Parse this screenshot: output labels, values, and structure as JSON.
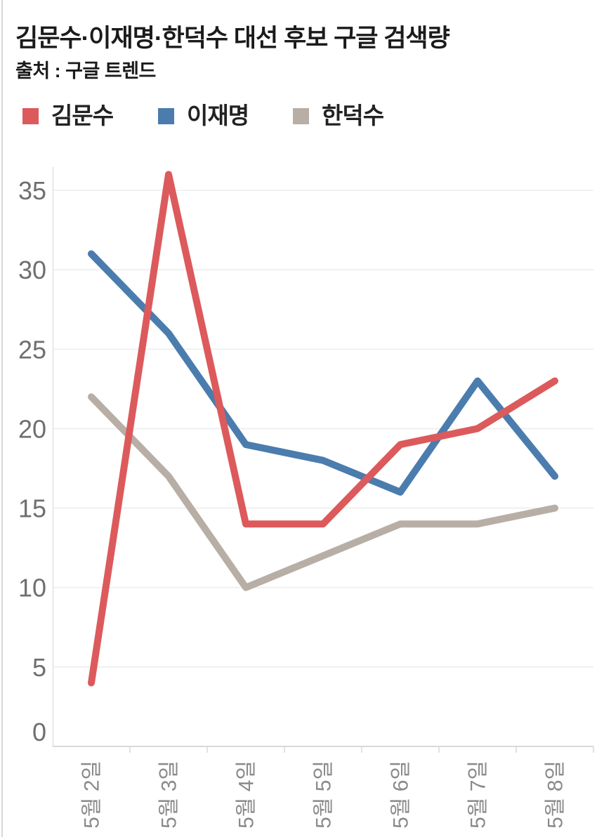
{
  "header": {
    "title": "김문수·이재명·한덕수 대선 후보 구글 검색량",
    "subtitle": "출처 : 구글 트렌드"
  },
  "legend": [
    {
      "label": "김문수",
      "color": "#dc5a5c"
    },
    {
      "label": "이재명",
      "color": "#4b7cae"
    },
    {
      "label": "한덕수",
      "color": "#b7aea5"
    }
  ],
  "chart_data": {
    "type": "line",
    "title": "김문수·이재명·한덕수 대선 후보 구글 검색량",
    "source": "출처 : 구글 트렌드",
    "categories": [
      "5월 2일",
      "5월 3일",
      "5월 4일",
      "5월 5일",
      "5월 6일",
      "5월 7일",
      "5월 8일"
    ],
    "series": [
      {
        "name": "김문수",
        "color": "#dc5a5c",
        "values": [
          4,
          36,
          14,
          14,
          19,
          20,
          23
        ]
      },
      {
        "name": "이재명",
        "color": "#4b7cae",
        "values": [
          31,
          26,
          19,
          18,
          16,
          23,
          17
        ]
      },
      {
        "name": "한덕수",
        "color": "#b7aea5",
        "values": [
          22,
          17,
          10,
          12,
          14,
          14,
          15
        ]
      }
    ],
    "xlabel": "",
    "ylabel": "",
    "ylim": [
      0,
      35
    ],
    "yticks": [
      0,
      5,
      10,
      15,
      20,
      25,
      30,
      35
    ],
    "grid": true,
    "legend_position": "top",
    "grid_color": "#ededed",
    "axis_color": "#d9d9d9",
    "y_tick_label_color": "#6f6f6f",
    "x_tick_label_color": "#8a8a8a"
  }
}
